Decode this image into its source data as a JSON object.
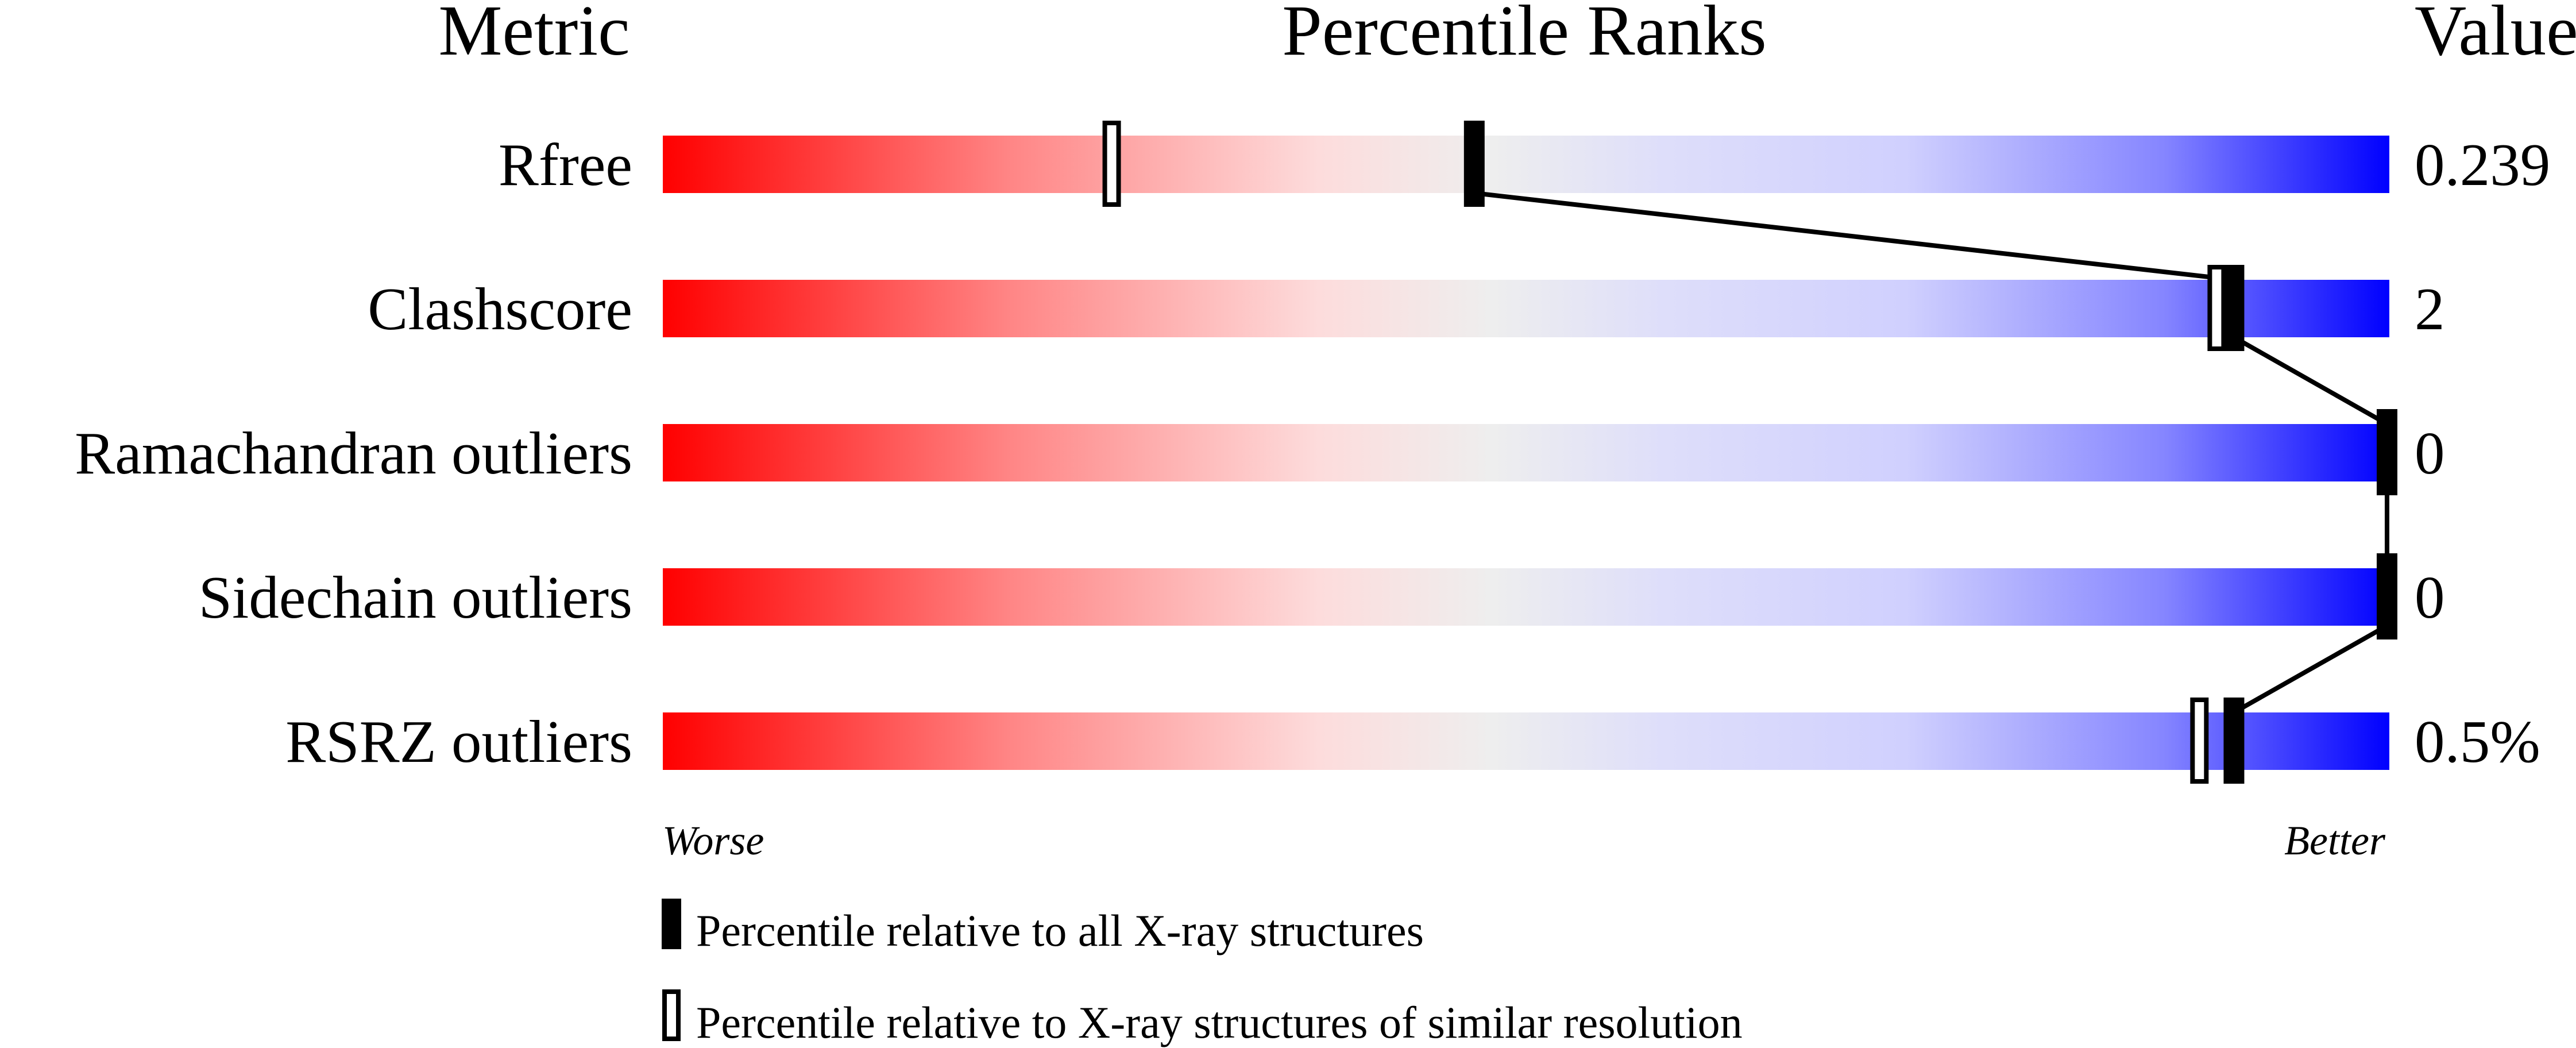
{
  "chart_data": {
    "type": "bar",
    "headers": {
      "metric": "Metric",
      "ranks": "Percentile Ranks",
      "value": "Value"
    },
    "metrics": [
      {
        "label": "Rfree",
        "value": "0.239",
        "percentile_all": 47,
        "percentile_similar": 26
      },
      {
        "label": "Clashscore",
        "value": "2",
        "percentile_all": 91,
        "percentile_similar": 90
      },
      {
        "label": "Ramachandran outliers",
        "value": "0",
        "percentile_all": 100,
        "percentile_similar": 100
      },
      {
        "label": "Sidechain outliers",
        "value": "0",
        "percentile_all": 100,
        "percentile_similar": 100
      },
      {
        "label": "RSRZ outliers",
        "value": "0.5%",
        "percentile_all": 91,
        "percentile_similar": 89
      }
    ],
    "xlim": [
      0,
      100
    ],
    "axis_left": "Worse",
    "axis_right": "Better",
    "legend": {
      "all": "Percentile relative to all X-ray structures",
      "similar": "Percentile relative to X-ray structures of similar resolution"
    },
    "colors": {
      "worse": "#ff0000",
      "middle": "#eeeeee",
      "better": "#0000ff",
      "marker": "#000000"
    }
  }
}
